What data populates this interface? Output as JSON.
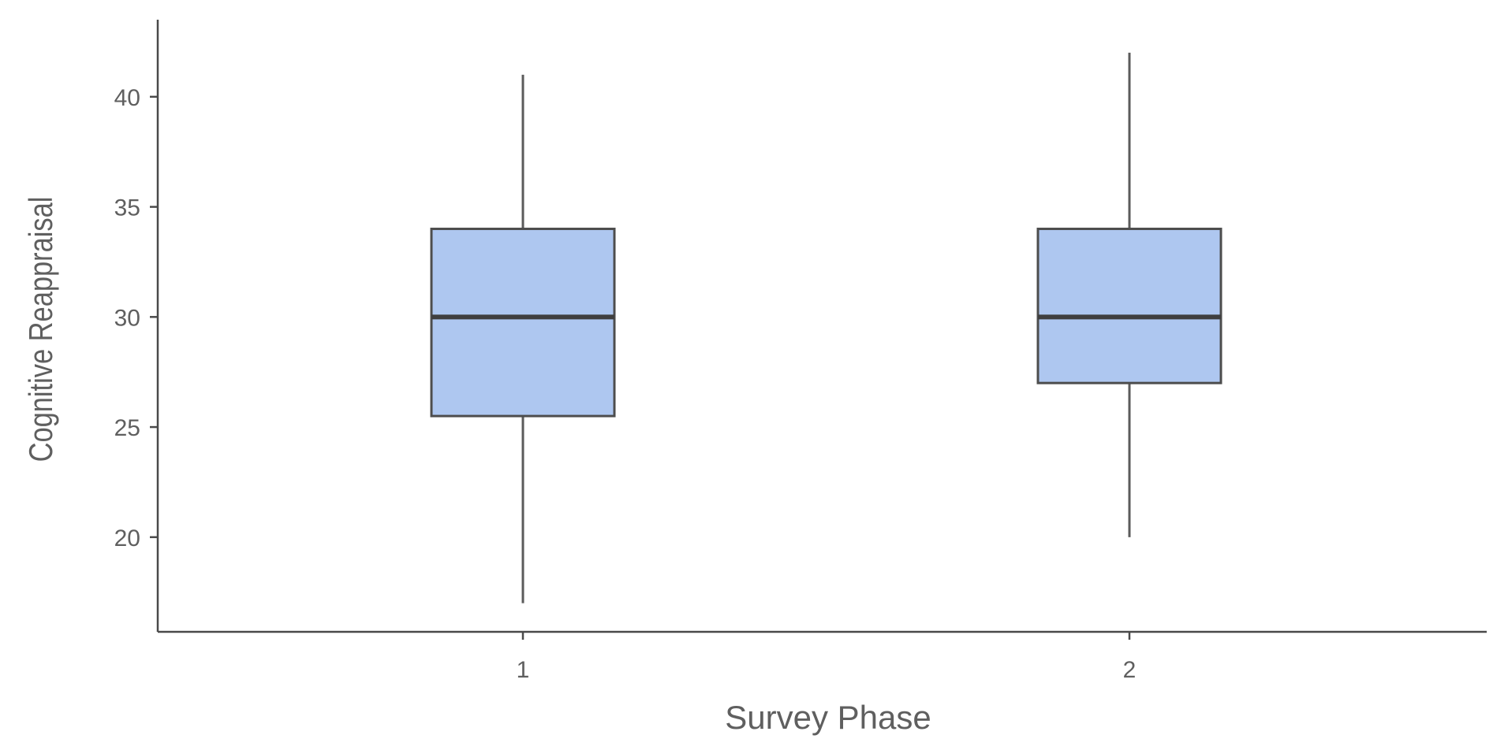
{
  "chart_data": {
    "type": "boxplot",
    "xlabel": "Survey Phase",
    "ylabel": "Cognitive Reappraisal",
    "categories": [
      "1",
      "2"
    ],
    "boxes": [
      {
        "category": "1",
        "min": 17,
        "q1": 25.5,
        "median": 30,
        "q3": 34,
        "max": 41
      },
      {
        "category": "2",
        "min": 20,
        "q1": 27,
        "median": 30,
        "q3": 34,
        "max": 42
      }
    ],
    "yticks": [
      "20",
      "25",
      "30",
      "35",
      "40"
    ],
    "ylim": [
      15.7,
      43.5
    ],
    "grid": false,
    "box_fill": "#aec7f0"
  }
}
